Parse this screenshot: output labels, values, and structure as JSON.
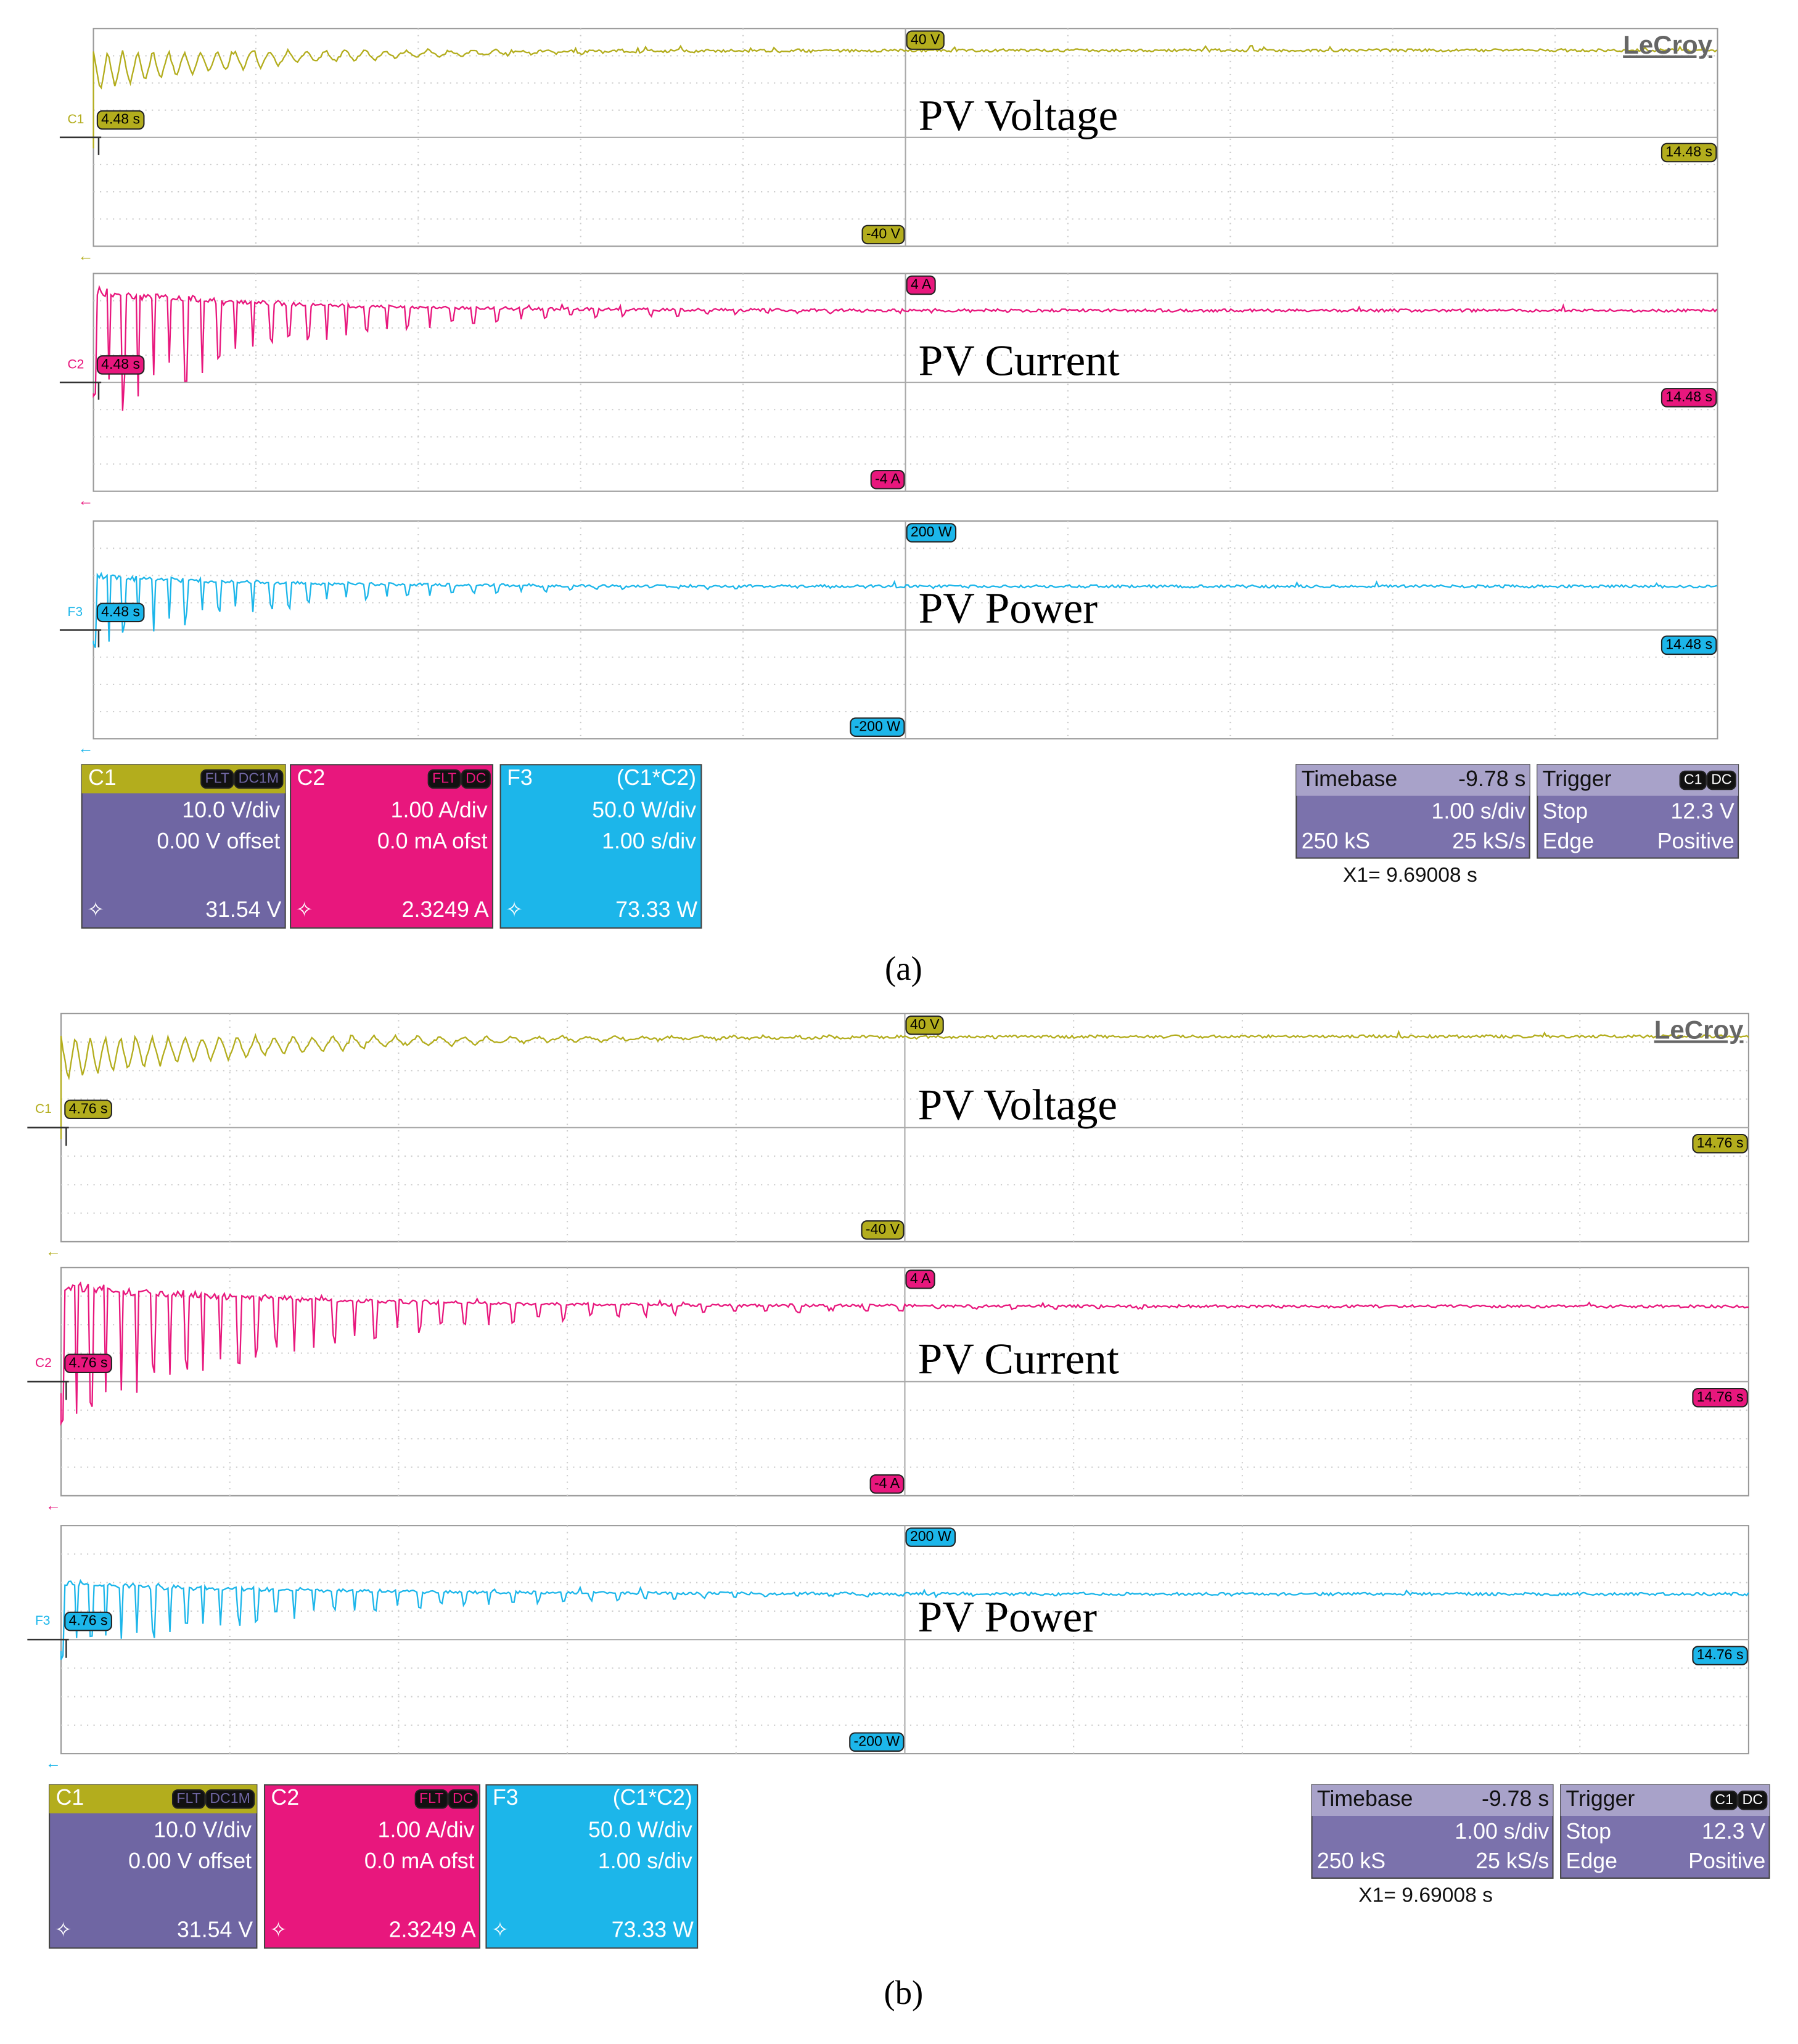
{
  "panels": [
    {
      "caption": "(a)",
      "logo": "LeCroy",
      "traces": [
        {
          "channel": "C1",
          "title": "PV Voltage",
          "top_label": "40 V",
          "bottom_label": "-40 V",
          "left_time": "4.48 s",
          "right_time": "14.48 s"
        },
        {
          "channel": "C2",
          "title": "PV Current",
          "top_label": "4 A",
          "bottom_label": "-4 A",
          "left_time": "4.48 s",
          "right_time": "14.48 s"
        },
        {
          "channel": "F3",
          "title": "PV Power",
          "top_label": "200 W",
          "bottom_label": "-200 W",
          "left_time": "4.48 s",
          "right_time": "14.48 s"
        }
      ],
      "channel_boxes": [
        {
          "name": "C1",
          "tags": [
            "FLT",
            "DC1M"
          ],
          "lines": [
            "10.0 V/div",
            "0.00 V offset"
          ],
          "reading": "31.54 V"
        },
        {
          "name": "C2",
          "tags": [
            "FLT",
            "DC"
          ],
          "lines": [
            "1.00 A/div",
            "0.0 mA ofst"
          ],
          "reading": "2.3249 A"
        },
        {
          "name": "F3",
          "source": "(C1*C2)",
          "lines": [
            "50.0 W/div",
            "1.00 s/div"
          ],
          "reading": "73.33 W"
        }
      ],
      "timebase": {
        "label": "Timebase",
        "delay": "-9.78 s",
        "scale": "1.00 s/div",
        "samples": "250 kS",
        "rate": "25 kS/s"
      },
      "trigger": {
        "label": "Trigger",
        "tags": [
          "C1",
          "DC"
        ],
        "mode": "Stop",
        "level": "12.3 V",
        "type": "Edge",
        "slope": "Positive"
      },
      "cursor": "X1=  9.69008 s"
    },
    {
      "caption": "(b)",
      "logo": "LeCroy",
      "traces": [
        {
          "channel": "C1",
          "title": "PV Voltage",
          "top_label": "40 V",
          "bottom_label": "-40 V",
          "left_time": "4.76 s",
          "right_time": "14.76 s"
        },
        {
          "channel": "C2",
          "title": "PV Current",
          "top_label": "4 A",
          "bottom_label": "-4 A",
          "left_time": "4.76 s",
          "right_time": "14.76 s"
        },
        {
          "channel": "F3",
          "title": "PV Power",
          "top_label": "200 W",
          "bottom_label": "-200 W",
          "left_time": "4.76 s",
          "right_time": "14.76 s"
        }
      ],
      "channel_boxes": [
        {
          "name": "C1",
          "tags": [
            "FLT",
            "DC1M"
          ],
          "lines": [
            "10.0 V/div",
            "0.00 V offset"
          ],
          "reading": "31.54 V"
        },
        {
          "name": "C2",
          "tags": [
            "FLT",
            "DC"
          ],
          "lines": [
            "1.00 A/div",
            "0.0 mA ofst"
          ],
          "reading": "2.3249 A"
        },
        {
          "name": "F3",
          "source": "(C1*C2)",
          "lines": [
            "50.0 W/div",
            "1.00 s/div"
          ],
          "reading": "73.33 W"
        }
      ],
      "timebase": {
        "label": "Timebase",
        "delay": "-9.78 s",
        "scale": "1.00 s/div",
        "samples": "250 kS",
        "rate": "25 kS/s"
      },
      "trigger": {
        "label": "Trigger",
        "tags": [
          "C1",
          "DC"
        ],
        "mode": "Stop",
        "level": "12.3 V",
        "type": "Edge",
        "slope": "Positive"
      },
      "cursor": "X1=  9.69008 s"
    }
  ]
}
